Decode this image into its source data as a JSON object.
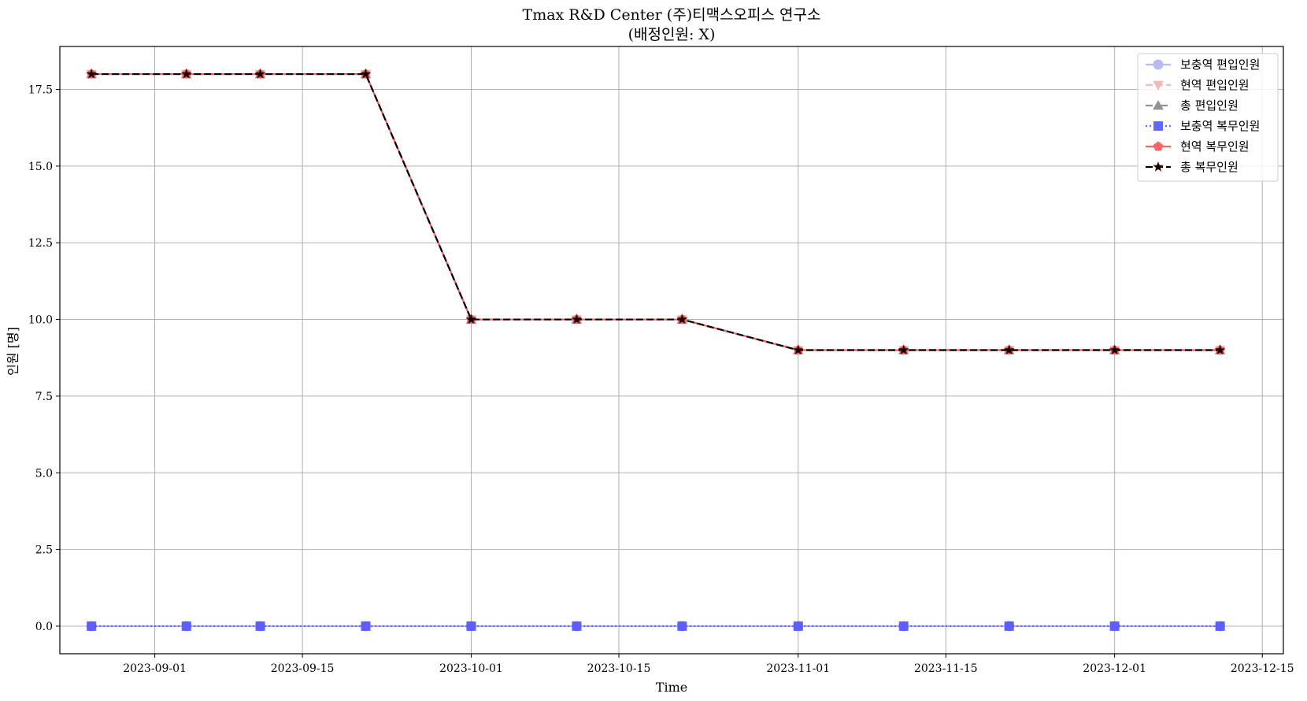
{
  "chart_data": {
    "type": "line",
    "title": "Tmax R&D Center (주)티맥스오피스 연구소",
    "subtitle": "(배정인원: X)",
    "xlabel": "Time",
    "ylabel": "인원 [명]",
    "xlim": [
      "2023-08-23",
      "2023-12-17"
    ],
    "ylim": [
      -0.9,
      18.9
    ],
    "x_ticks": [
      "2023-09-01",
      "2023-09-15",
      "2023-10-01",
      "2023-10-15",
      "2023-11-01",
      "2023-11-15",
      "2023-12-01",
      "2023-12-15"
    ],
    "y_ticks": [
      0.0,
      2.5,
      5.0,
      7.5,
      10.0,
      12.5,
      15.0,
      17.5
    ],
    "y_tick_labels": [
      "0.0",
      "2.5",
      "5.0",
      "7.5",
      "10.0",
      "12.5",
      "15.0",
      "17.5"
    ],
    "grid": true,
    "legend_position": "top-right",
    "x": [
      "2023-08-26",
      "2023-09-04",
      "2023-09-11",
      "2023-09-21",
      "2023-10-01",
      "2023-10-11",
      "2023-10-21",
      "2023-11-01",
      "2023-11-11",
      "2023-11-21",
      "2023-12-01",
      "2023-12-11"
    ],
    "series": [
      {
        "name": "보충역 편입인원",
        "values": [
          0,
          0,
          0,
          0,
          0,
          0,
          0,
          0,
          0,
          0,
          0,
          0
        ],
        "color": "#aaaaee",
        "dash": "solid",
        "marker": "circle",
        "opacity": 0.8
      },
      {
        "name": "현역 편입인원",
        "values": [
          18,
          18,
          18,
          18,
          10,
          10,
          10,
          9,
          9,
          9,
          9,
          9
        ],
        "color": "#eeaaaa",
        "dash": "dashed",
        "marker": "triangle-down",
        "opacity": 0.8
      },
      {
        "name": "총 편입인원",
        "values": [
          18,
          18,
          18,
          18,
          10,
          10,
          10,
          9,
          9,
          9,
          9,
          9
        ],
        "color": "#777777",
        "dash": "dashdot",
        "marker": "triangle-up",
        "opacity": 0.8
      },
      {
        "name": "보충역 복무인원",
        "values": [
          0,
          0,
          0,
          0,
          0,
          0,
          0,
          0,
          0,
          0,
          0,
          0
        ],
        "color": "#5555ff",
        "dash": "dotted",
        "marker": "square",
        "opacity": 0.9
      },
      {
        "name": "현역 복무인원",
        "values": [
          18,
          18,
          18,
          18,
          10,
          10,
          10,
          9,
          9,
          9,
          9,
          9
        ],
        "color": "#ff5555",
        "dash": "solid",
        "marker": "pentagon",
        "opacity": 0.9
      },
      {
        "name": "총 복무인원",
        "values": [
          18,
          18,
          18,
          18,
          10,
          10,
          10,
          9,
          9,
          9,
          9,
          9
        ],
        "color": "#000000",
        "dash": "dashed",
        "marker": "star",
        "opacity": 1.0
      }
    ]
  }
}
